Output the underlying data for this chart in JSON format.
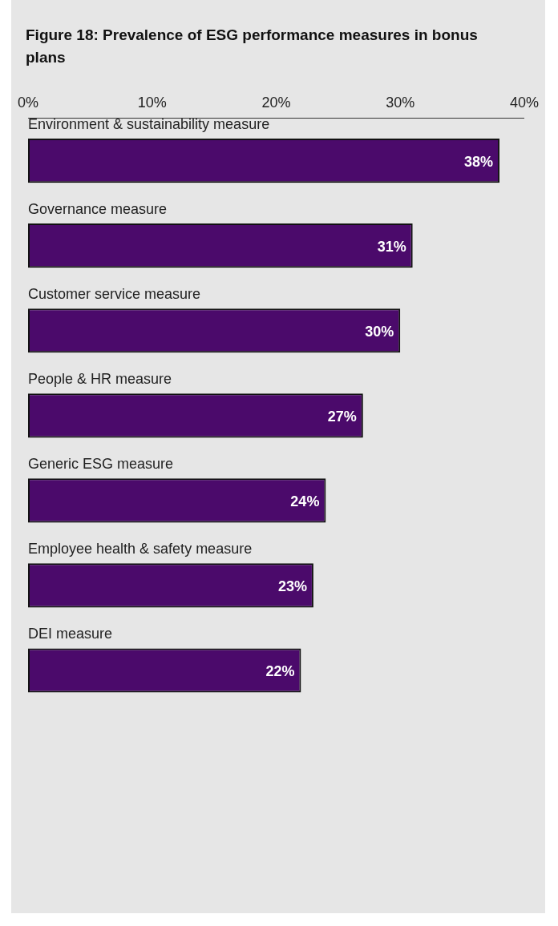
{
  "chart_data": {
    "type": "bar",
    "orientation": "horizontal",
    "title": "Figure 18: Prevalence of ESG performance measures in bonus plans",
    "categories": [
      "Environment & sustainability measure",
      "Governance measure",
      "Customer service measure",
      "People & HR measure",
      "Generic ESG measure",
      "Employee health & safety measure",
      "DEI measure"
    ],
    "values": [
      38,
      31,
      30,
      27,
      24,
      23,
      22
    ],
    "value_labels": [
      "38%",
      "31%",
      "30%",
      "27%",
      "24%",
      "23%",
      "22%"
    ],
    "color": "#4b0a6b",
    "xlim": [
      0,
      40
    ],
    "xticks": [
      {
        "value": 0,
        "label": "0%"
      },
      {
        "value": 10,
        "label": "10%"
      },
      {
        "value": 20,
        "label": "20%"
      },
      {
        "value": 30,
        "label": "30%"
      },
      {
        "value": 40,
        "label": "40%"
      }
    ],
    "grid": false,
    "legend": false
  }
}
